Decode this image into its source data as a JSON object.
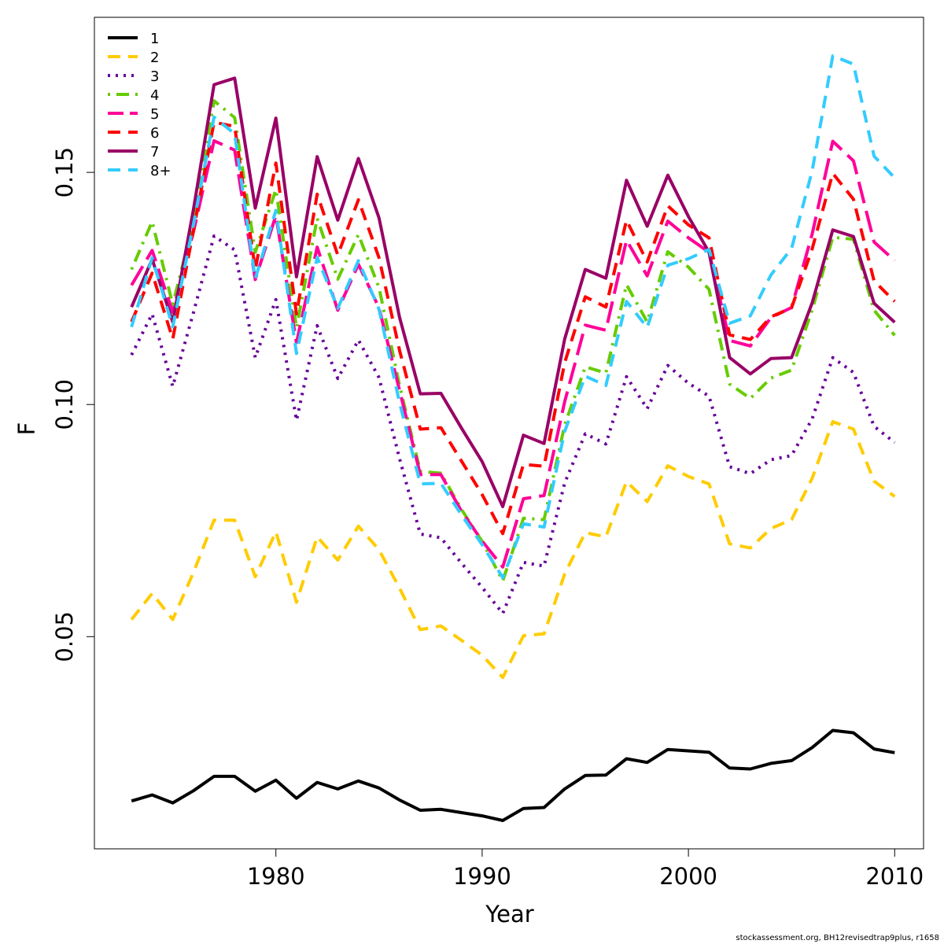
{
  "chart_data": {
    "type": "line",
    "title": "",
    "xlabel": "Year",
    "ylabel": "F",
    "xlim": [
      1971.2,
      2011.4
    ],
    "ylim": [
      0.0043,
      0.1834
    ],
    "xticks": [
      1980,
      1990,
      2000,
      2010
    ],
    "yticks": [
      0.05,
      0.1,
      0.15
    ],
    "ytick_labels": [
      "0.05",
      "0.10",
      "0.15"
    ],
    "grid": false,
    "legend_position": "top-left",
    "x": [
      1973,
      1974,
      1975,
      1976,
      1977,
      1978,
      1979,
      1980,
      1981,
      1982,
      1983,
      1984,
      1985,
      1986,
      1987,
      1988,
      1989,
      1990,
      1991,
      1992,
      1993,
      1994,
      1995,
      1996,
      1997,
      1998,
      1999,
      2000,
      2001,
      2002,
      2003,
      2004,
      2005,
      2006,
      2007,
      2008,
      2009,
      2010
    ],
    "series": [
      {
        "name": "1",
        "color": "#000000",
        "dash": "solid",
        "values": [
          0.0146,
          0.0159,
          0.0142,
          0.0168,
          0.0199,
          0.0199,
          0.0167,
          0.0191,
          0.0152,
          0.0186,
          0.0172,
          0.0189,
          0.0174,
          0.0148,
          0.0126,
          0.0128,
          0.0121,
          0.0114,
          0.0104,
          0.013,
          0.0132,
          0.0172,
          0.0201,
          0.0202,
          0.0237,
          0.0229,
          0.0257,
          0.0254,
          0.0251,
          0.0217,
          0.0215,
          0.0227,
          0.0233,
          0.0261,
          0.0298,
          0.0293,
          0.0258,
          0.025
        ]
      },
      {
        "name": "2",
        "color": "#FFCC00",
        "dash": "dash",
        "values": [
          0.0537,
          0.0593,
          0.0537,
          0.0638,
          0.0751,
          0.0751,
          0.0629,
          0.0726,
          0.0574,
          0.0715,
          0.0665,
          0.0738,
          0.0687,
          0.0604,
          0.0515,
          0.0523,
          0.0492,
          0.046,
          0.0412,
          0.0502,
          0.0506,
          0.0635,
          0.0724,
          0.0715,
          0.0834,
          0.0791,
          0.0868,
          0.0845,
          0.0829,
          0.07,
          0.0691,
          0.0733,
          0.0752,
          0.0841,
          0.0963,
          0.0947,
          0.0835,
          0.0802
        ]
      },
      {
        "name": "3",
        "color": "#660099",
        "dash": "dot",
        "values": [
          0.1107,
          0.1195,
          0.1039,
          0.1198,
          0.1363,
          0.1333,
          0.1101,
          0.1226,
          0.0966,
          0.117,
          0.1056,
          0.1139,
          0.1058,
          0.0883,
          0.0721,
          0.0713,
          0.0658,
          0.0606,
          0.055,
          0.066,
          0.0652,
          0.0831,
          0.0937,
          0.0915,
          0.106,
          0.0991,
          0.1084,
          0.1046,
          0.1018,
          0.0866,
          0.0851,
          0.0881,
          0.089,
          0.0969,
          0.1101,
          0.1069,
          0.0953,
          0.0918
        ]
      },
      {
        "name": "4",
        "color": "#66CC00",
        "dash": "dashdot",
        "values": [
          0.1291,
          0.1394,
          0.1215,
          0.1393,
          0.1654,
          0.1618,
          0.1328,
          0.1463,
          0.1165,
          0.1401,
          0.127,
          0.1366,
          0.1252,
          0.104,
          0.0856,
          0.0852,
          0.0774,
          0.0705,
          0.062,
          0.0755,
          0.0752,
          0.0956,
          0.1081,
          0.1068,
          0.1258,
          0.1178,
          0.1329,
          0.1296,
          0.1248,
          0.1044,
          0.1013,
          0.1057,
          0.1074,
          0.1204,
          0.136,
          0.1356,
          0.1203,
          0.1149
        ]
      },
      {
        "name": "5",
        "color": "#FF0099",
        "dash": "longdash",
        "values": [
          0.1257,
          0.1332,
          0.1199,
          0.1372,
          0.1568,
          0.1548,
          0.1269,
          0.1407,
          0.1133,
          0.1339,
          0.1203,
          0.1302,
          0.1208,
          0.103,
          0.0849,
          0.0849,
          0.077,
          0.0706,
          0.065,
          0.0797,
          0.0804,
          0.1006,
          0.1171,
          0.116,
          0.1354,
          0.1277,
          0.1395,
          0.1359,
          0.1328,
          0.1138,
          0.1126,
          0.1187,
          0.1209,
          0.1367,
          0.1567,
          0.1525,
          0.135,
          0.131
        ]
      },
      {
        "name": "6",
        "color": "#FF0000",
        "dash": "dash",
        "values": [
          0.1178,
          0.1283,
          0.1141,
          0.1375,
          0.1608,
          0.1599,
          0.1291,
          0.152,
          0.1195,
          0.1453,
          0.1322,
          0.1441,
          0.1316,
          0.1116,
          0.0947,
          0.095,
          0.0878,
          0.0806,
          0.0722,
          0.0871,
          0.0867,
          0.109,
          0.1232,
          0.121,
          0.1397,
          0.1307,
          0.1428,
          0.1387,
          0.1359,
          0.115,
          0.114,
          0.1189,
          0.1208,
          0.1335,
          0.1498,
          0.1442,
          0.1266,
          0.1222
        ]
      },
      {
        "name": "7",
        "color": "#990066",
        "dash": "solid",
        "values": [
          0.121,
          0.1313,
          0.1178,
          0.142,
          0.1689,
          0.1703,
          0.1423,
          0.1617,
          0.1275,
          0.1534,
          0.1397,
          0.153,
          0.1402,
          0.1187,
          0.1023,
          0.1024,
          0.0949,
          0.0877,
          0.078,
          0.0934,
          0.0916,
          0.1141,
          0.1291,
          0.1272,
          0.1483,
          0.1384,
          0.1494,
          0.1405,
          0.1328,
          0.1101,
          0.1066,
          0.1099,
          0.1101,
          0.1219,
          0.1376,
          0.1362,
          0.1218,
          0.1177
        ]
      },
      {
        "name": "8+",
        "color": "#33CCFF",
        "dash": "dash",
        "values": [
          0.1167,
          0.1316,
          0.1167,
          0.1388,
          0.1619,
          0.1583,
          0.1271,
          0.1418,
          0.111,
          0.1317,
          0.1207,
          0.131,
          0.1205,
          0.1003,
          0.0829,
          0.083,
          0.0762,
          0.0698,
          0.0627,
          0.0743,
          0.0736,
          0.0942,
          0.1061,
          0.1041,
          0.1222,
          0.1166,
          0.13,
          0.1314,
          0.1334,
          0.1175,
          0.1191,
          0.1279,
          0.1336,
          0.1503,
          0.1751,
          0.1733,
          0.1535,
          0.1488
        ]
      }
    ]
  },
  "footer": "stockassessment.org, BH12revisedtrap9plus, r1658"
}
